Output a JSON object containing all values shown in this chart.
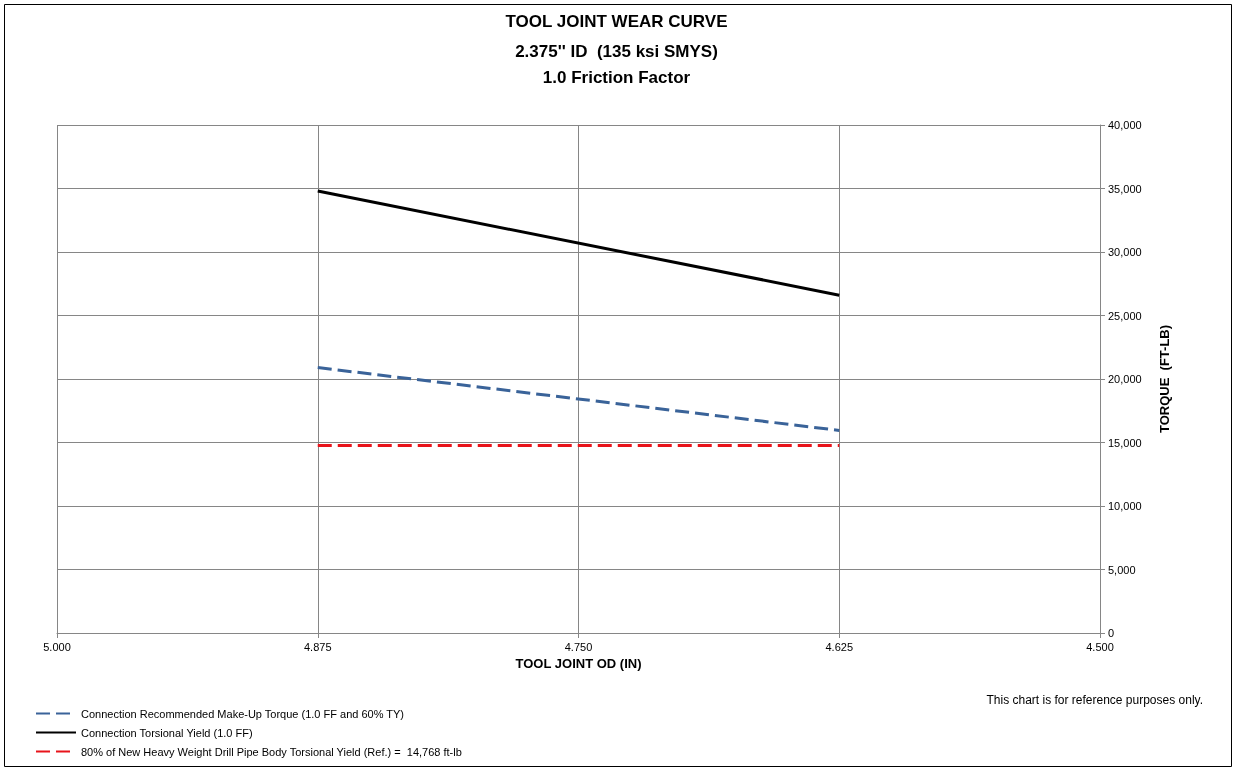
{
  "chart_data": {
    "type": "line",
    "title": "TOOL JOINT WEAR CURVE",
    "subtitle": "2.375'' ID  (135 ksi SMYS)\n1.0 Friction Factor",
    "xlabel": "TOOL JOINT OD (IN)",
    "y2label": "TORQUE  (FT-LB)",
    "x": [
      4.875,
      4.625
    ],
    "series": [
      {
        "name": "Connection Recommended Make-Up Torque (1.0 FF and 60% TY)",
        "color": "#3a6399",
        "values": [
          20900,
          15950
        ],
        "line_style": "dashed",
        "axis": "y2"
      },
      {
        "name": "Connection Torsional Yield (1.0 FF)",
        "color": "#000000",
        "values": [
          34800,
          26600
        ],
        "line_style": "solid",
        "axis": "y2"
      },
      {
        "name": "80% of New Heavy Weight Drill Pipe Body Torsional Yield (Ref.) =  14,768 ft-lb",
        "color": "#e8141b",
        "values": [
          14768,
          14768
        ],
        "line_style": "dashed",
        "axis": "y2"
      }
    ],
    "xlim": [
      5.0,
      4.5
    ],
    "xticks": [
      {
        "value": 5.0,
        "label": "5.000"
      },
      {
        "value": 4.875,
        "label": "4.875"
      },
      {
        "value": 4.75,
        "label": "4.750"
      },
      {
        "value": 4.625,
        "label": "4.625"
      },
      {
        "value": 4.5,
        "label": "4.500"
      }
    ],
    "y2lim": [
      0,
      40000
    ],
    "y2ticks": [
      0,
      {
        "value": 5000,
        "label": "5,000"
      },
      {
        "value": 10000,
        "label": "10,000"
      },
      {
        "value": 15000,
        "label": "15,000"
      },
      {
        "value": 20000,
        "label": "20,000"
      },
      {
        "value": 25000,
        "label": "25,000"
      },
      {
        "value": 30000,
        "label": "30,000"
      },
      {
        "value": 35000,
        "label": "35,000"
      },
      {
        "value": 40000,
        "label": "40,000"
      }
    ],
    "grid": true,
    "legend": "bottom left",
    "marker": "none",
    "annotations": [
      "This chart is for reference purposes only."
    ]
  }
}
